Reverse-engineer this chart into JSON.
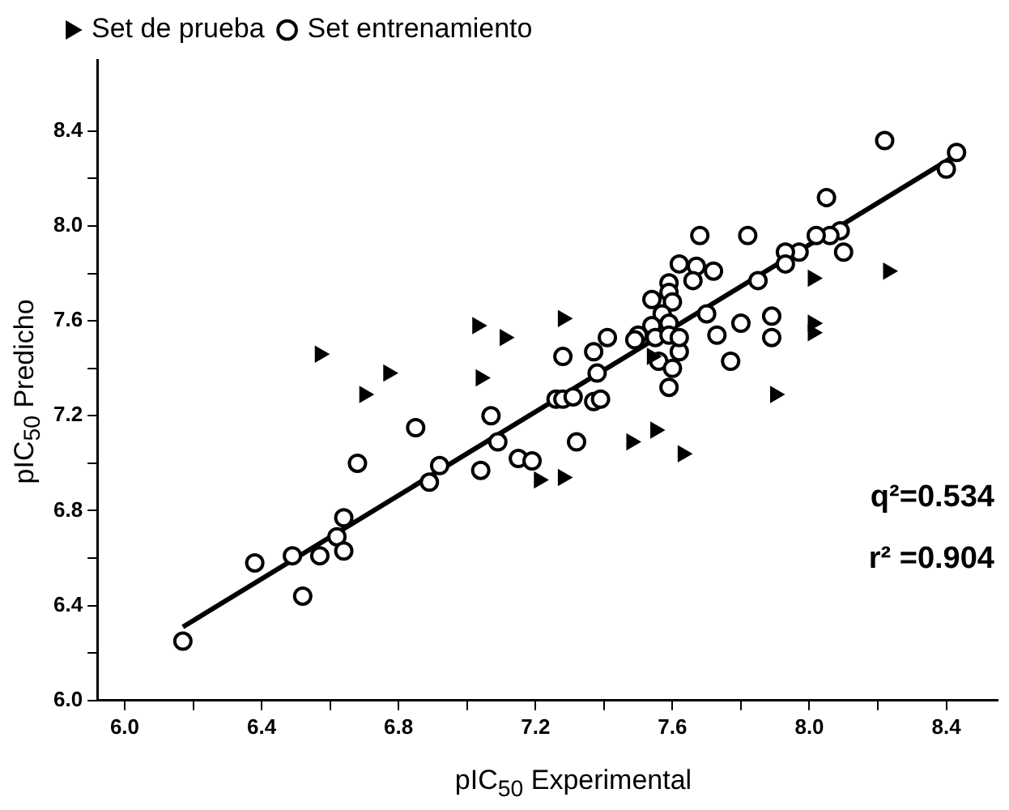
{
  "chart_data": {
    "type": "scatter",
    "xlabel": "pIC$_{50}$ Experimental",
    "ylabel": "pIC$_{50}$ Predicho",
    "xlim": [
      5.92,
      8.55
    ],
    "ylim": [
      6.0,
      8.7
    ],
    "xticks": [
      {
        "value": 6,
        "label": "6.0"
      },
      {
        "value": 6.2,
        "label": null
      },
      {
        "value": 6.4,
        "label": "6.4"
      },
      {
        "value": 6.6,
        "label": null
      },
      {
        "value": 6.8,
        "label": "6.8"
      },
      {
        "value": 7,
        "label": null
      },
      {
        "value": 7.2,
        "label": "7.2"
      },
      {
        "value": 7.4,
        "label": null
      },
      {
        "value": 7.6,
        "label": "7.6"
      },
      {
        "value": 7.8,
        "label": null
      },
      {
        "value": 8,
        "label": "8.0"
      },
      {
        "value": 8.2,
        "label": null
      },
      {
        "value": 8.4,
        "label": "8.4"
      }
    ],
    "yticks": [
      {
        "value": 6,
        "label": "6.0"
      },
      {
        "value": 6.2,
        "label": null
      },
      {
        "value": 6.4,
        "label": "6.4"
      },
      {
        "value": 6.6,
        "label": null
      },
      {
        "value": 6.8,
        "label": "6.8"
      },
      {
        "value": 7,
        "label": null
      },
      {
        "value": 7.2,
        "label": "7.2"
      },
      {
        "value": 7.4,
        "label": null
      },
      {
        "value": 7.6,
        "label": "7.6"
      },
      {
        "value": 7.8,
        "label": null
      },
      {
        "value": 8,
        "label": "8.0"
      },
      {
        "value": 8.2,
        "label": null
      },
      {
        "value": 8.4,
        "label": "8.4"
      }
    ],
    "grid": false,
    "legend": "top left",
    "series": [
      {
        "name": "Set de prueba",
        "color": "#000000",
        "marker": "triangle",
        "x": [
          6.57,
          6.7,
          6.77,
          7.04,
          7.21,
          7.28,
          7.48,
          7.55,
          7.63,
          7.9,
          7.54,
          7.28,
          8.01,
          8.23,
          8.01,
          8.01,
          7.03,
          7.11
        ],
        "values": [
          7.46,
          7.29,
          7.38,
          7.36,
          6.93,
          6.94,
          7.09,
          7.14,
          7.04,
          7.29,
          7.45,
          7.61,
          7.78,
          7.81,
          7.59,
          7.55,
          7.58,
          7.53
        ]
      },
      {
        "name": "Set entrenamiento",
        "color": "#000000",
        "marker": "circle",
        "x": [
          6.17,
          6.38,
          6.49,
          6.52,
          6.57,
          6.62,
          6.64,
          6.64,
          6.68,
          6.85,
          6.89,
          6.92,
          7.04,
          7.07,
          7.09,
          7.15,
          7.19,
          7.26,
          7.28,
          7.37,
          7.38,
          7.28,
          7.31,
          7.37,
          7.39,
          7.32,
          7.56,
          7.6,
          7.59,
          7.77,
          7.62,
          8.22,
          8.43,
          8.4,
          8.05,
          8.1,
          8.09,
          8.06,
          8.02,
          7.97,
          7.93,
          7.93,
          7.85,
          7.82,
          7.68,
          7.62,
          7.67,
          7.72,
          7.66,
          7.59,
          7.59,
          7.6,
          7.54,
          7.57,
          7.7,
          7.54,
          7.59,
          7.5,
          7.49,
          7.41,
          7.55,
          7.59,
          7.62,
          7.73,
          7.8,
          7.89,
          7.89
        ],
        "values": [
          6.25,
          6.58,
          6.61,
          6.44,
          6.61,
          6.69,
          6.77,
          6.63,
          7.0,
          7.15,
          6.92,
          6.99,
          6.97,
          7.2,
          7.09,
          7.02,
          7.01,
          7.27,
          7.45,
          7.47,
          7.38,
          7.27,
          7.28,
          7.26,
          7.27,
          7.09,
          7.43,
          7.4,
          7.32,
          7.43,
          7.47,
          8.36,
          8.31,
          8.24,
          8.12,
          7.89,
          7.98,
          7.96,
          7.96,
          7.89,
          7.89,
          7.84,
          7.77,
          7.96,
          7.96,
          7.84,
          7.83,
          7.81,
          7.77,
          7.76,
          7.72,
          7.68,
          7.69,
          7.63,
          7.63,
          7.58,
          7.59,
          7.54,
          7.52,
          7.53,
          7.53,
          7.54,
          7.53,
          7.54,
          7.59,
          7.62,
          7.53
        ]
      },
      {
        "type": "line",
        "color": "#000000",
        "marker": "none",
        "x": [
          6.17,
          8.43
        ],
        "values": [
          6.31,
          8.3
        ]
      }
    ],
    "annotations": [
      "q²=0.534",
      "r² =0.904"
    ]
  }
}
